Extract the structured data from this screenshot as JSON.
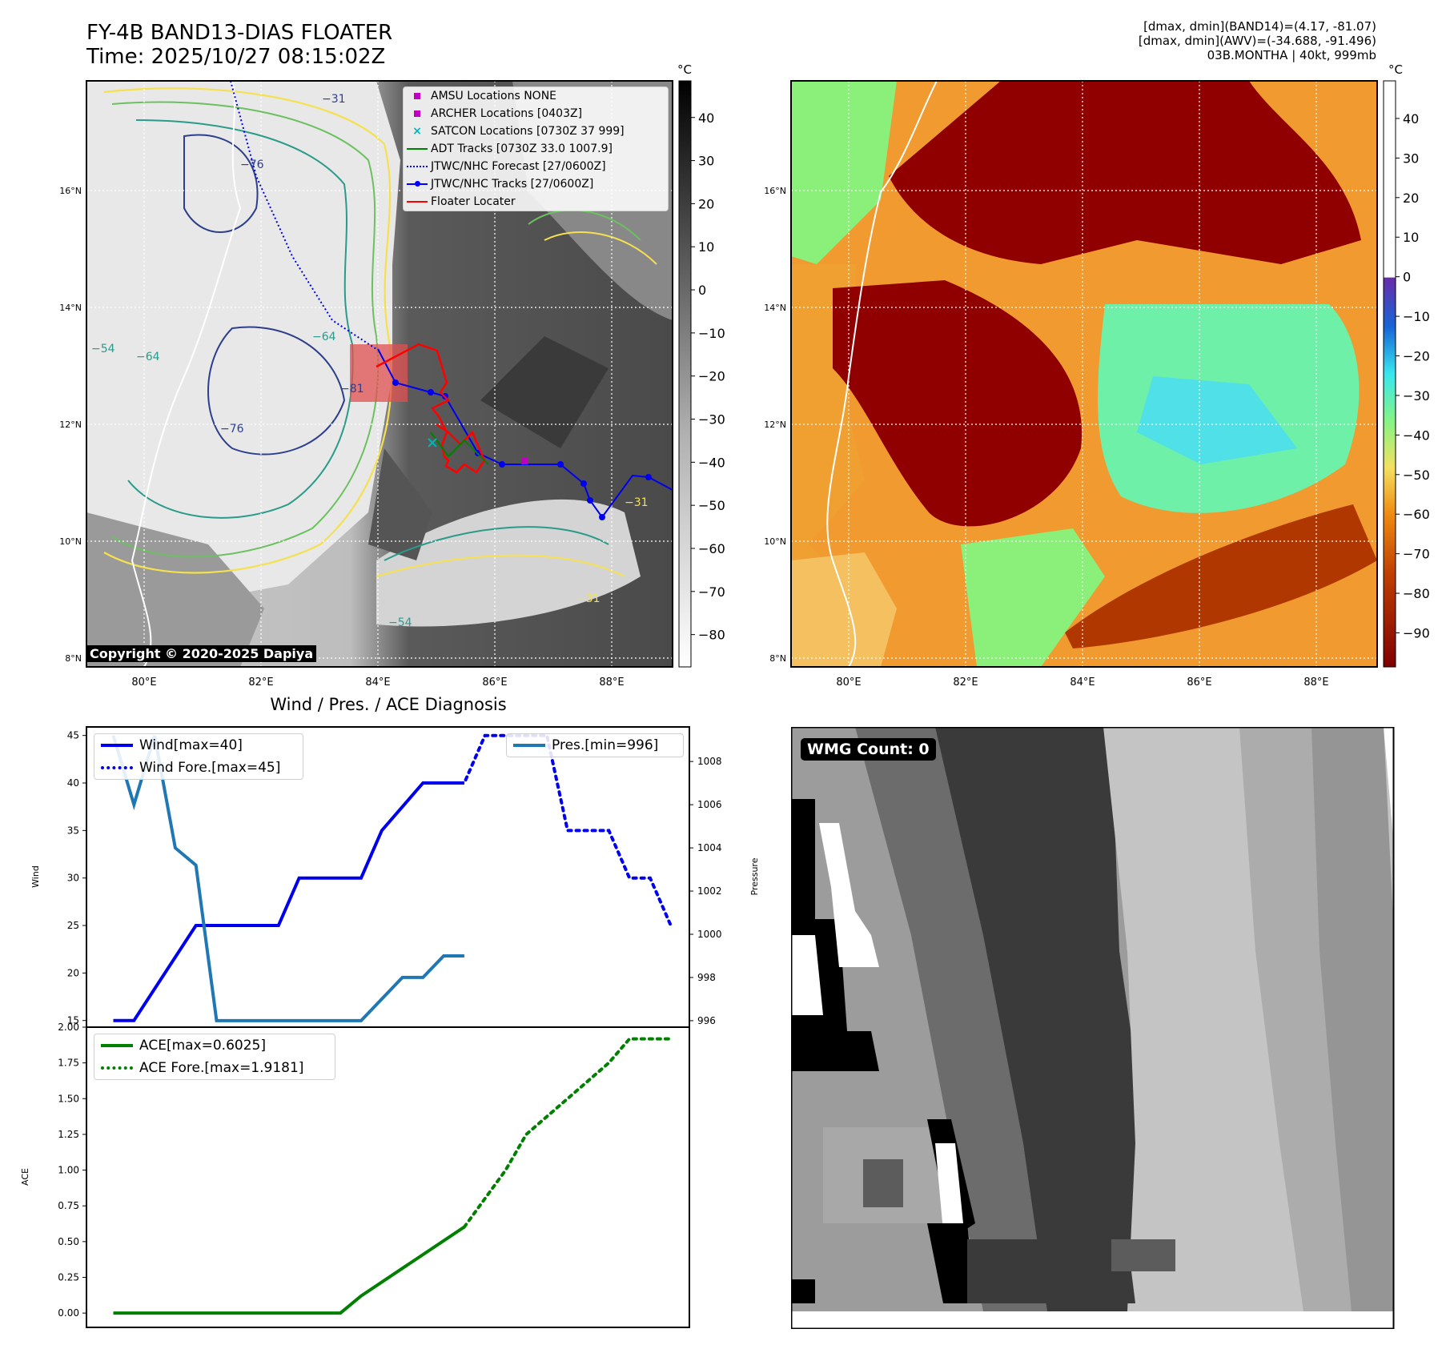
{
  "header": {
    "title_line1": "FY-4B BAND13-DIAS FLOATER",
    "title_line2": "Time: 2025/10/27 08:15:02Z",
    "right_line1": "[dmax, dmin](BAND14)=(4.17, -81.07)",
    "right_line2": "[dmax, dmin](AWV)=(-34.688, -91.496)",
    "right_line3": "03B.MONTHA | 40kt, 999mb"
  },
  "map_axes": {
    "lon_ticks": [
      "80°E",
      "82°E",
      "84°E",
      "86°E",
      "88°E"
    ],
    "lat_ticks": [
      "16°N",
      "14°N",
      "12°N",
      "10°N",
      "8°N"
    ]
  },
  "ir_colorbar": {
    "unit": "°C",
    "ticks": [
      "40",
      "30",
      "20",
      "10",
      "0",
      "−10",
      "−20",
      "−30",
      "−40",
      "−50",
      "−60",
      "−70",
      "−80"
    ]
  },
  "awv_colorbar": {
    "unit": "°C",
    "ticks": [
      "40",
      "30",
      "20",
      "10",
      "0",
      "−10",
      "−20",
      "−30",
      "−40",
      "−50",
      "−60",
      "−70",
      "−80",
      "−90"
    ]
  },
  "contour_labels": [
    "−31",
    "−76",
    "−64",
    "−54",
    "−81",
    "−76",
    "−64",
    "−54",
    "−31",
    "−31"
  ],
  "map_legend": [
    {
      "label": "AMSU Locations NONE",
      "symbol": "square",
      "color": "#c000c0"
    },
    {
      "label": "ARCHER Locations [0403Z]",
      "symbol": "square",
      "color": "#c000c0"
    },
    {
      "label": "SATCON Locations [0730Z 37 999]",
      "symbol": "x",
      "color": "#00b5b5"
    },
    {
      "label": "ADT Tracks [0730Z 33.0 1007.9]",
      "symbol": "line",
      "color": "#008000"
    },
    {
      "label": "JTWC/NHC Forecast [27/0600Z]",
      "symbol": "dotted",
      "color": "#0000ff"
    },
    {
      "label": "JTWC/NHC Tracks [27/0600Z]",
      "symbol": "line-dot",
      "color": "#0000ff"
    },
    {
      "label": "Floater Locater",
      "symbol": "line",
      "color": "#ff0000"
    }
  ],
  "copyright": "Copyright © 2020-2025 Dapiya",
  "wmg_count": "WMG Count: 0",
  "chart_data": [
    {
      "type": "line",
      "title": "Wind / Pres. / ACE Diagnosis",
      "ylabel": "Wind",
      "ylabel_right": "Pressure",
      "ylim": [
        14.3,
        45.9
      ],
      "ylim_right": [
        995.7,
        1009.6
      ],
      "yticks": [
        15,
        20,
        25,
        30,
        35,
        40,
        45
      ],
      "yticks_right": [
        996,
        998,
        1000,
        1002,
        1004,
        1006,
        1008
      ],
      "xlim": [
        -1.3,
        27.9
      ],
      "series": [
        {
          "name": "Wind[max=40]",
          "style": "solid",
          "color": "#0000ee",
          "axis": "left",
          "x": [
            0,
            1,
            4,
            8,
            9,
            12,
            13,
            15,
            16,
            17
          ],
          "values": [
            15,
            15,
            25,
            25,
            30,
            30,
            35,
            40,
            40,
            40
          ]
        },
        {
          "name": "Wind Fore.[max=45]",
          "style": "dotted",
          "color": "#0000ee",
          "axis": "left",
          "x": [
            16,
            17,
            18,
            19,
            21,
            22,
            24,
            25,
            26,
            27
          ],
          "values": [
            40,
            40,
            45,
            45,
            45,
            35,
            35,
            30,
            30,
            25
          ]
        },
        {
          "name": "Pres.[min=996]",
          "style": "solid",
          "color": "#1f77b4",
          "axis": "right",
          "x": [
            0,
            1,
            2,
            3,
            4,
            5,
            9,
            12,
            13,
            14,
            15,
            16,
            17
          ],
          "values": [
            1009.2,
            1006.0,
            1009.2,
            1004.0,
            1003.2,
            996.0,
            996.0,
            996.0,
            997.0,
            998.0,
            998.0,
            999.0,
            999.0
          ]
        }
      ]
    },
    {
      "type": "line",
      "ylabel": "ACE",
      "ylim": [
        -0.1,
        2.0
      ],
      "yticks": [
        "0.00",
        "0.25",
        "0.50",
        "0.75",
        "1.00",
        "1.25",
        "1.50",
        "1.75",
        "2.00"
      ],
      "xlim": [
        -1.3,
        27.9
      ],
      "series": [
        {
          "name": "ACE[max=0.6025]",
          "style": "solid",
          "color": "#008000",
          "x": [
            0,
            5,
            9,
            11,
            12,
            17
          ],
          "values": [
            0.0,
            0.0,
            0.0,
            0.0,
            0.12,
            0.6025
          ]
        },
        {
          "name": "ACE Fore.[max=1.9181]",
          "style": "dotted",
          "color": "#008000",
          "x": [
            17,
            19,
            20,
            22,
            24,
            25,
            27
          ],
          "values": [
            0.6025,
            1.0,
            1.25,
            1.5,
            1.75,
            1.9181,
            1.9181
          ]
        }
      ]
    }
  ]
}
